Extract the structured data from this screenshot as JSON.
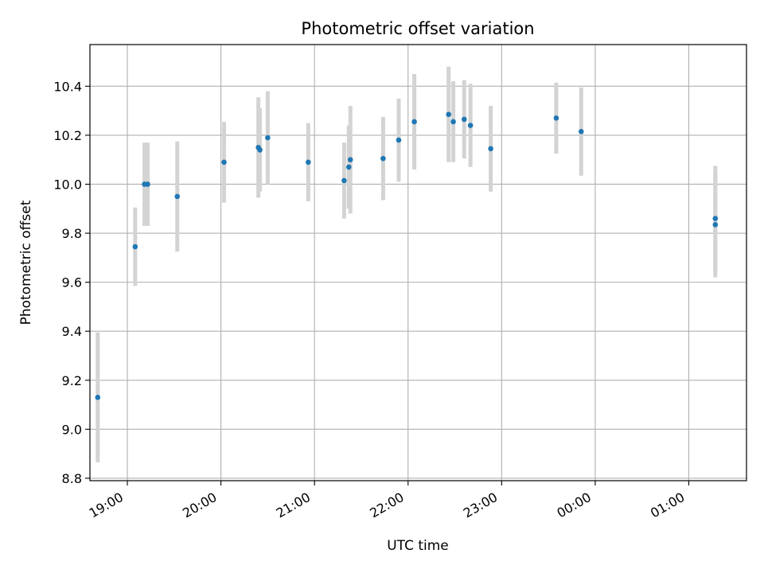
{
  "chart_data": {
    "type": "scatter",
    "title": "Photometric offset variation",
    "xlabel": "UTC time",
    "ylabel": "Photometric offset",
    "x_axis": "time",
    "xlim": [
      "18:36",
      "01:37"
    ],
    "ylim": [
      8.79,
      10.57
    ],
    "x_ticks": [
      "19:00",
      "20:00",
      "21:00",
      "22:00",
      "23:00",
      "00:00",
      "01:00"
    ],
    "y_ticks": [
      "8.8",
      "9.0",
      "9.2",
      "9.4",
      "9.6",
      "9.8",
      "10.0",
      "10.2",
      "10.4"
    ],
    "grid": true,
    "point_color": "#1f77b4",
    "errorbar_color": "#d3d3d3",
    "points": [
      {
        "t": "18:41",
        "y": 9.13,
        "err": 0.265
      },
      {
        "t": "19:05",
        "y": 9.745,
        "err": 0.16
      },
      {
        "t": "19:11",
        "y": 10.0,
        "err": 0.17
      },
      {
        "t": "19:13",
        "y": 10.0,
        "err": 0.17
      },
      {
        "t": "19:32",
        "y": 9.95,
        "err": 0.225
      },
      {
        "t": "20:02",
        "y": 10.09,
        "err": 0.165
      },
      {
        "t": "20:24",
        "y": 10.15,
        "err": 0.205
      },
      {
        "t": "20:25",
        "y": 10.14,
        "err": 0.17
      },
      {
        "t": "20:30",
        "y": 10.19,
        "err": 0.19
      },
      {
        "t": "20:56",
        "y": 10.09,
        "err": 0.16
      },
      {
        "t": "21:19",
        "y": 10.015,
        "err": 0.155
      },
      {
        "t": "21:22",
        "y": 10.07,
        "err": 0.17
      },
      {
        "t": "21:23",
        "y": 10.1,
        "err": 0.22
      },
      {
        "t": "21:44",
        "y": 10.105,
        "err": 0.17
      },
      {
        "t": "21:54",
        "y": 10.18,
        "err": 0.17
      },
      {
        "t": "22:04",
        "y": 10.255,
        "err": 0.195
      },
      {
        "t": "22:26",
        "y": 10.285,
        "err": 0.195
      },
      {
        "t": "22:29",
        "y": 10.255,
        "err": 0.165
      },
      {
        "t": "22:36",
        "y": 10.265,
        "err": 0.16
      },
      {
        "t": "22:40",
        "y": 10.24,
        "err": 0.17
      },
      {
        "t": "22:53",
        "y": 10.145,
        "err": 0.175
      },
      {
        "t": "23:35",
        "y": 10.27,
        "err": 0.145
      },
      {
        "t": "23:51",
        "y": 10.215,
        "err": 0.18
      },
      {
        "t": "01:17",
        "y": 9.835,
        "err": 0.215
      },
      {
        "t": "01:17",
        "y": 9.86,
        "err": 0.215
      }
    ]
  }
}
